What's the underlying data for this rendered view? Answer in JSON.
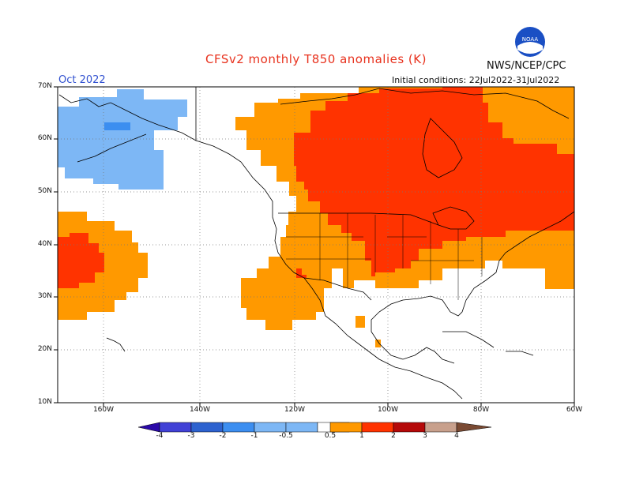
{
  "title": "CFSv2 monthly T850 anomalies (K)",
  "organization": "NWS/NCEP/CPC",
  "logo_text": "NOAA",
  "forecast_month": "Oct 2022",
  "initial_conditions": "Initial conditions: 22Jul2022-31Jul2022",
  "lat_labels": [
    "70N",
    "60N",
    "50N",
    "40N",
    "30N",
    "20N",
    "10N"
  ],
  "lon_labels": [
    "160W",
    "140W",
    "120W",
    "100W",
    "80W",
    "60W"
  ],
  "colorbar": {
    "labels": [
      "-4",
      "-3",
      "-2",
      "-1",
      "-0.5",
      "0.5",
      "1",
      "2",
      "3",
      "4"
    ],
    "colors": [
      "#2b0aa8",
      "#4141d6",
      "#2d62cf",
      "#3c8ef0",
      "#7db7f5",
      "#ffffff",
      "#ff9900",
      "#ff3300",
      "#b50909",
      "#c8a08c",
      "#7a4a33"
    ]
  },
  "colors": {
    "title": "#e8321e",
    "month": "#3050d0",
    "anom_0_5_to_1": "#ff9900",
    "anom_1_to_2": "#ff3300",
    "anom_neg_0_5_to_1": "#7db7f5",
    "anom_neg_1_to_2": "#3c8ef0"
  }
}
